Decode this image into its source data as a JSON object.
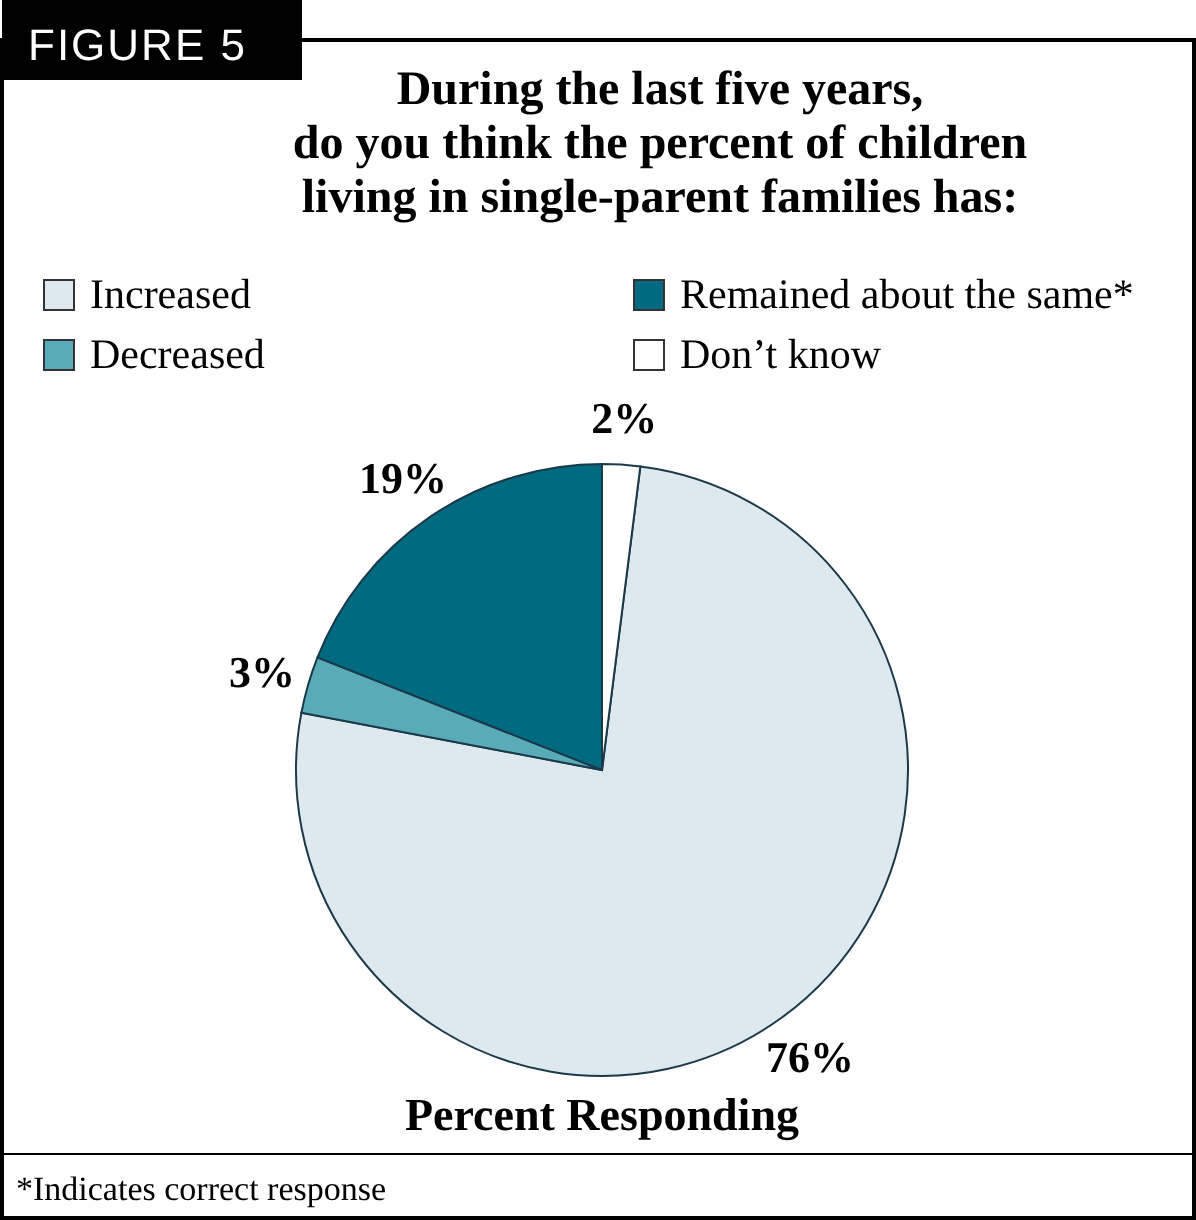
{
  "chart_data": {
    "type": "pie",
    "title": "During the last five years,\ndo you think the percent of children\nliving in single-parent families has:",
    "xlabel": "Percent Responding",
    "categories": [
      "Increased",
      "Decreased",
      "Remained about the same*",
      "Don’t know"
    ],
    "values": [
      76,
      3,
      19,
      2
    ],
    "colors": [
      "#dde9ef",
      "#5aabb8",
      "#006a80",
      "#ffffff"
    ],
    "value_labels": [
      "76%",
      "3%",
      "19%",
      "2%"
    ],
    "legend": "top",
    "annotations": [
      "FIGURE 5",
      "*Indicates correct response"
    ]
  }
}
